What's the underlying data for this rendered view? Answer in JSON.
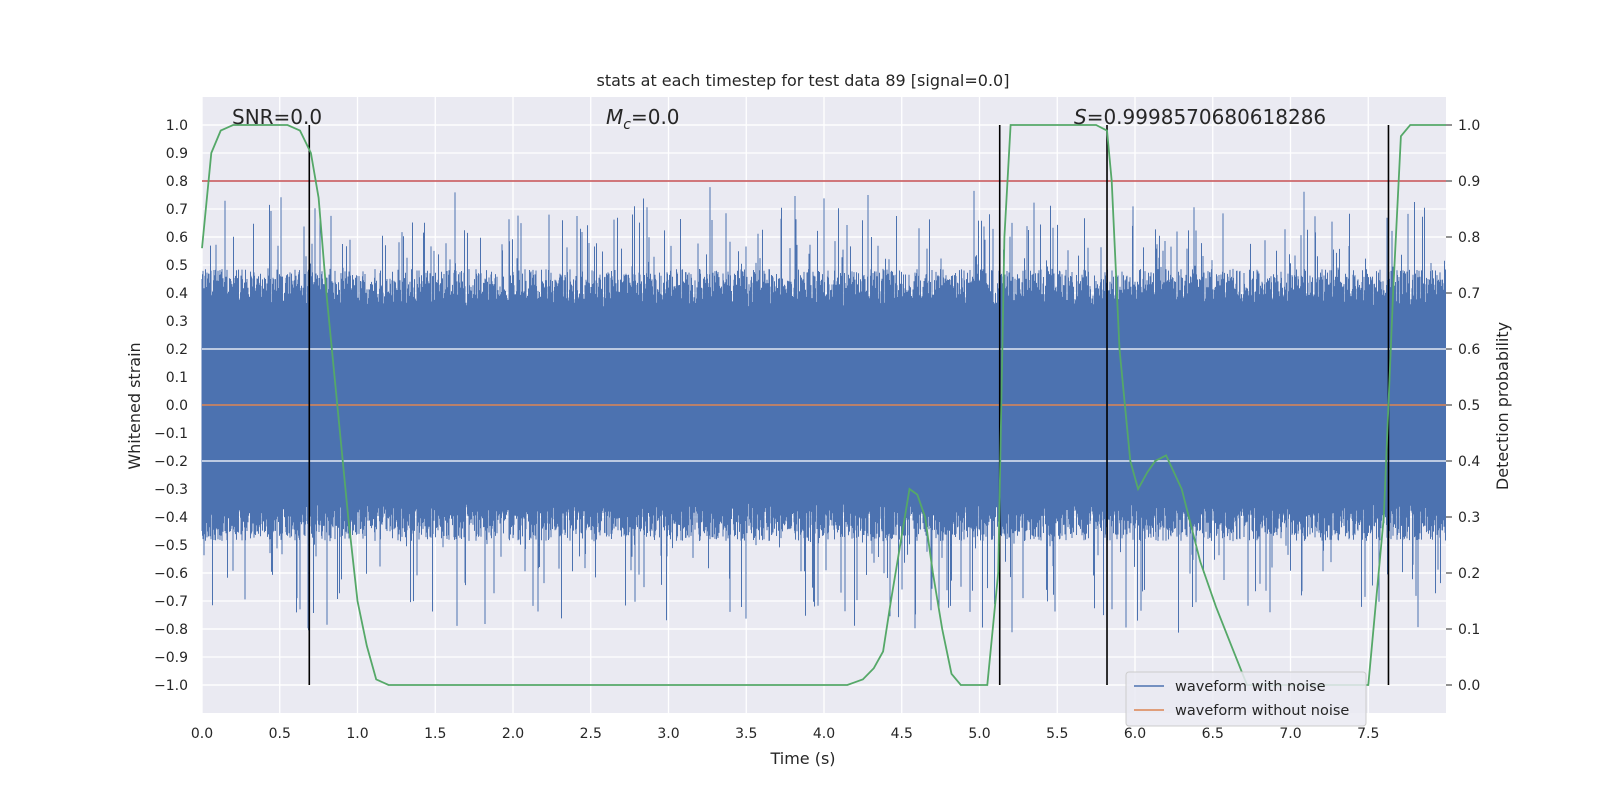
{
  "chart_data": {
    "type": "line",
    "title": "stats at each timestep for test data 89 [signal=0.0]",
    "xlabel": "Time (s)",
    "ylabel": "Whitened strain",
    "y2label": "Detection probability",
    "xlim": [
      0.0,
      8.0
    ],
    "ylim": [
      -1.1,
      1.1
    ],
    "y2lim": [
      -0.05,
      1.05
    ],
    "x_ticks": [
      "0.0",
      "0.5",
      "1.0",
      "1.5",
      "2.0",
      "2.5",
      "3.0",
      "3.5",
      "4.0",
      "4.5",
      "5.0",
      "5.5",
      "6.0",
      "6.5",
      "7.0",
      "7.5"
    ],
    "y_ticks": [
      "1.0",
      "0.9",
      "0.8",
      "0.7",
      "0.6",
      "0.5",
      "0.4",
      "0.3",
      "0.2",
      "0.1",
      "0.0",
      "−0.1",
      "−0.2",
      "−0.3",
      "−0.4",
      "−0.5",
      "−0.6",
      "−0.7",
      "−0.8",
      "−0.9",
      "−1.0"
    ],
    "y2_ticks": [
      "1.0",
      "0.9",
      "0.8",
      "0.7",
      "0.6",
      "0.5",
      "0.4",
      "0.3",
      "0.2",
      "0.1",
      "0.0"
    ],
    "annotations": {
      "snr": "SNR=0.0",
      "mc_symbol": "M",
      "mc_sub": "c",
      "mc_value": "=0.0",
      "s_symbol": "S",
      "s_value": "=0.9998570680618286"
    },
    "threshold_y2": 0.9,
    "event_lines_x": [
      0.69,
      5.13,
      5.82,
      7.63
    ],
    "series": [
      {
        "name": "waveform with noise",
        "color": "#4c72b0",
        "style": "noise",
        "amplitude_typical": 0.45,
        "amplitude_max": 0.98
      },
      {
        "name": "waveform without noise",
        "color": "#dd8452",
        "x": [
          0.0,
          8.0
        ],
        "y": [
          0.0,
          0.0
        ]
      },
      {
        "name": "detection probability",
        "color": "#55a868",
        "axis": "y2",
        "x": [
          0.0,
          0.06,
          0.12,
          0.2,
          0.4,
          0.55,
          0.63,
          0.7,
          0.75,
          0.8,
          0.87,
          0.94,
          1.0,
          1.06,
          1.12,
          1.2,
          1.5,
          2.0,
          3.0,
          4.0,
          4.15,
          4.2,
          4.25,
          4.32,
          4.38,
          4.43,
          4.49,
          4.55,
          4.6,
          4.65,
          4.7,
          4.76,
          4.82,
          4.88,
          4.95,
          5.05,
          5.12,
          5.16,
          5.2,
          5.4,
          5.6,
          5.75,
          5.82,
          5.85,
          5.9,
          5.97,
          6.02,
          6.08,
          6.13,
          6.2,
          6.3,
          6.42,
          6.52,
          6.62,
          6.72,
          7.25,
          7.5,
          7.6,
          7.66,
          7.71,
          7.77,
          7.85,
          8.0
        ],
        "y": [
          0.78,
          0.95,
          0.99,
          1.0,
          1.0,
          1.0,
          0.99,
          0.95,
          0.87,
          0.7,
          0.5,
          0.3,
          0.15,
          0.07,
          0.01,
          0.0,
          0.0,
          0.0,
          0.0,
          0.0,
          0.0,
          0.005,
          0.01,
          0.03,
          0.06,
          0.15,
          0.25,
          0.35,
          0.34,
          0.3,
          0.2,
          0.1,
          0.02,
          0.0,
          0.0,
          0.0,
          0.2,
          0.8,
          1.0,
          1.0,
          1.0,
          1.0,
          0.99,
          0.9,
          0.6,
          0.4,
          0.35,
          0.38,
          0.4,
          0.41,
          0.35,
          0.22,
          0.14,
          0.07,
          0.0,
          0.0,
          0.0,
          0.3,
          0.7,
          0.98,
          1.0,
          1.0,
          1.0
        ]
      }
    ],
    "grid": true,
    "legend": "lower-right"
  }
}
